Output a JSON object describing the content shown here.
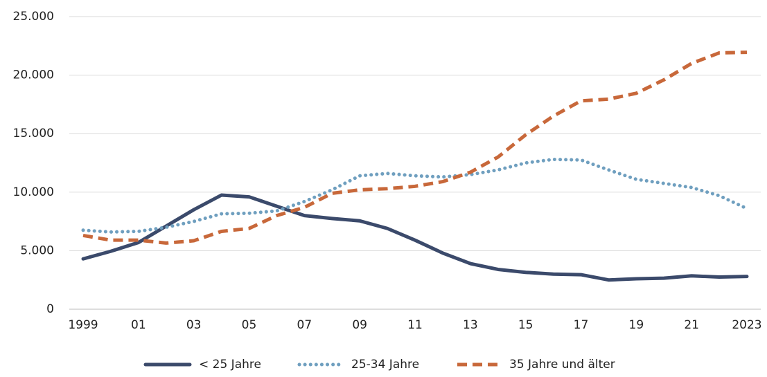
{
  "chart_data": {
    "type": "line",
    "categories": [
      "1999",
      null,
      "01",
      null,
      "03",
      null,
      "05",
      null,
      "07",
      null,
      "09",
      null,
      "11",
      null,
      "13",
      null,
      "15",
      null,
      "17",
      null,
      "19",
      null,
      "21",
      null,
      "2023"
    ],
    "series": [
      {
        "name": "< 25 Jahre",
        "color": "#3b4a6b",
        "style": "solid",
        "values": [
          4300,
          4950,
          5700,
          7100,
          8500,
          9750,
          9600,
          8800,
          8000,
          7750,
          7550,
          6900,
          5900,
          4800,
          3900,
          3400,
          3150,
          3000,
          2950,
          2500,
          2600,
          2650,
          2850,
          2750,
          2800
        ]
      },
      {
        "name": "25-34 Jahre",
        "color": "#6f9fbf",
        "style": "dotted",
        "values": [
          6750,
          6600,
          6650,
          7000,
          7500,
          8150,
          8200,
          8400,
          9200,
          10200,
          11400,
          11600,
          11400,
          11300,
          11500,
          11900,
          12500,
          12800,
          12750,
          11900,
          11100,
          10750,
          10400,
          9700,
          8600
        ]
      },
      {
        "name": "35 Jahre und älter",
        "color": "#c8683a",
        "style": "dashed",
        "values": [
          6300,
          5900,
          5900,
          5650,
          5850,
          6650,
          6900,
          8000,
          8700,
          9900,
          10200,
          10300,
          10500,
          10900,
          11700,
          13000,
          14900,
          16500,
          17800,
          17950,
          18450,
          19600,
          21000,
          21900,
          21950
        ]
      }
    ],
    "ylim": [
      0,
      25000
    ],
    "yticks": [
      0,
      {
        "value": 5000,
        "label": "5.000"
      },
      {
        "value": 10000,
        "label": "10.000"
      },
      {
        "value": 15000,
        "label": "15.000"
      },
      {
        "value": 20000,
        "label": "20.000"
      },
      {
        "value": 25000,
        "label": "25.000"
      }
    ],
    "grid": true,
    "legend": "bottom"
  }
}
